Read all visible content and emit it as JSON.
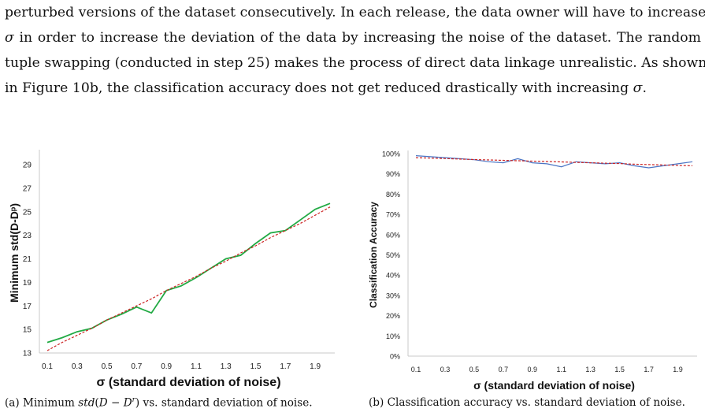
{
  "paragraph": {
    "line1": "perturbed versions of the dataset consecutively. In each release, the data owner will have to increase",
    "line2a": "σ",
    "line2b": " in order to increase the deviation of the data by increasing the noise of the dataset. The random",
    "line3": "tuple swapping (conducted in step 25) makes the process of direct data linkage unrealistic. As shown",
    "line4a": "in Figure 10b, the classification accuracy does not get reduced drastically with increasing ",
    "line4b": "σ",
    "line4c": "."
  },
  "captions": {
    "a": "(a) Minimum std(D − Dʳ) vs. standard deviation of noise.",
    "b": "(b) Classification accuracy vs. standard deviation of noise."
  },
  "chart_data": [
    {
      "type": "line",
      "xlabel": "σ (standard deviation of noise)",
      "ylabel": "Minimum std(D-Dᵖ)",
      "ylim": [
        13,
        30
      ],
      "yticks": [
        "13",
        "15",
        "17",
        "19",
        "21",
        "23",
        "25",
        "27",
        "29"
      ],
      "xticks": [
        "0.1",
        "0.3",
        "0.5",
        "0.7",
        "0.9",
        "1.1",
        "1.3",
        "1.5",
        "1.7",
        "1.9"
      ],
      "x": [
        0.1,
        0.2,
        0.3,
        0.4,
        0.5,
        0.6,
        0.7,
        0.8,
        0.9,
        1.0,
        1.1,
        1.2,
        1.3,
        1.4,
        1.5,
        1.6,
        1.7,
        1.8,
        1.9,
        2.0
      ],
      "series": [
        {
          "values": [
            13.9,
            14.3,
            14.8,
            15.1,
            15.8,
            16.3,
            16.9,
            16.4,
            18.3,
            18.7,
            19.4,
            20.2,
            21.0,
            21.3,
            22.3,
            23.2,
            23.4,
            24.3,
            25.2,
            25.7
          ],
          "color": "#22aa44"
        },
        {
          "values": [
            13.2,
            13.9,
            14.5,
            15.1,
            15.8,
            16.4,
            17.0,
            17.6,
            18.3,
            18.9,
            19.5,
            20.2,
            20.8,
            21.5,
            22.1,
            22.8,
            23.4,
            24.0,
            24.7,
            25.4
          ],
          "color": "#cc2222",
          "style": "dashed"
        }
      ]
    },
    {
      "type": "line",
      "xlabel": "σ (standard deviation of noise)",
      "ylabel": "Classification Accuracy",
      "ylim": [
        0,
        100
      ],
      "yticks": [
        "0%",
        "10%",
        "20%",
        "30%",
        "40%",
        "50%",
        "60%",
        "70%",
        "80%",
        "90%",
        "100%"
      ],
      "xticks": [
        "0.1",
        "0.3",
        "0.5",
        "0.7",
        "0.9",
        "1.1",
        "1.3",
        "1.5",
        "1.7",
        "1.9"
      ],
      "x": [
        0.1,
        0.2,
        0.3,
        0.4,
        0.5,
        0.6,
        0.7,
        0.8,
        0.9,
        1.0,
        1.1,
        1.2,
        1.3,
        1.4,
        1.5,
        1.6,
        1.7,
        1.8,
        1.9,
        2.0
      ],
      "series": [
        {
          "values": [
            99.0,
            98.5,
            98.0,
            97.5,
            97.0,
            96.0,
            95.5,
            97.5,
            95.5,
            95.0,
            93.5,
            96.0,
            95.5,
            95.0,
            95.5,
            94.0,
            93.0,
            94.0,
            95.0,
            96.0
          ],
          "color": "#4a74c4"
        },
        {
          "values": [
            98.0,
            97.8,
            97.6,
            97.3,
            97.1,
            96.9,
            96.7,
            96.5,
            96.3,
            96.1,
            95.9,
            95.7,
            95.5,
            95.3,
            95.1,
            94.8,
            94.6,
            94.4,
            94.2,
            94.0
          ],
          "color": "#cc2222",
          "style": "dashed"
        }
      ]
    }
  ]
}
